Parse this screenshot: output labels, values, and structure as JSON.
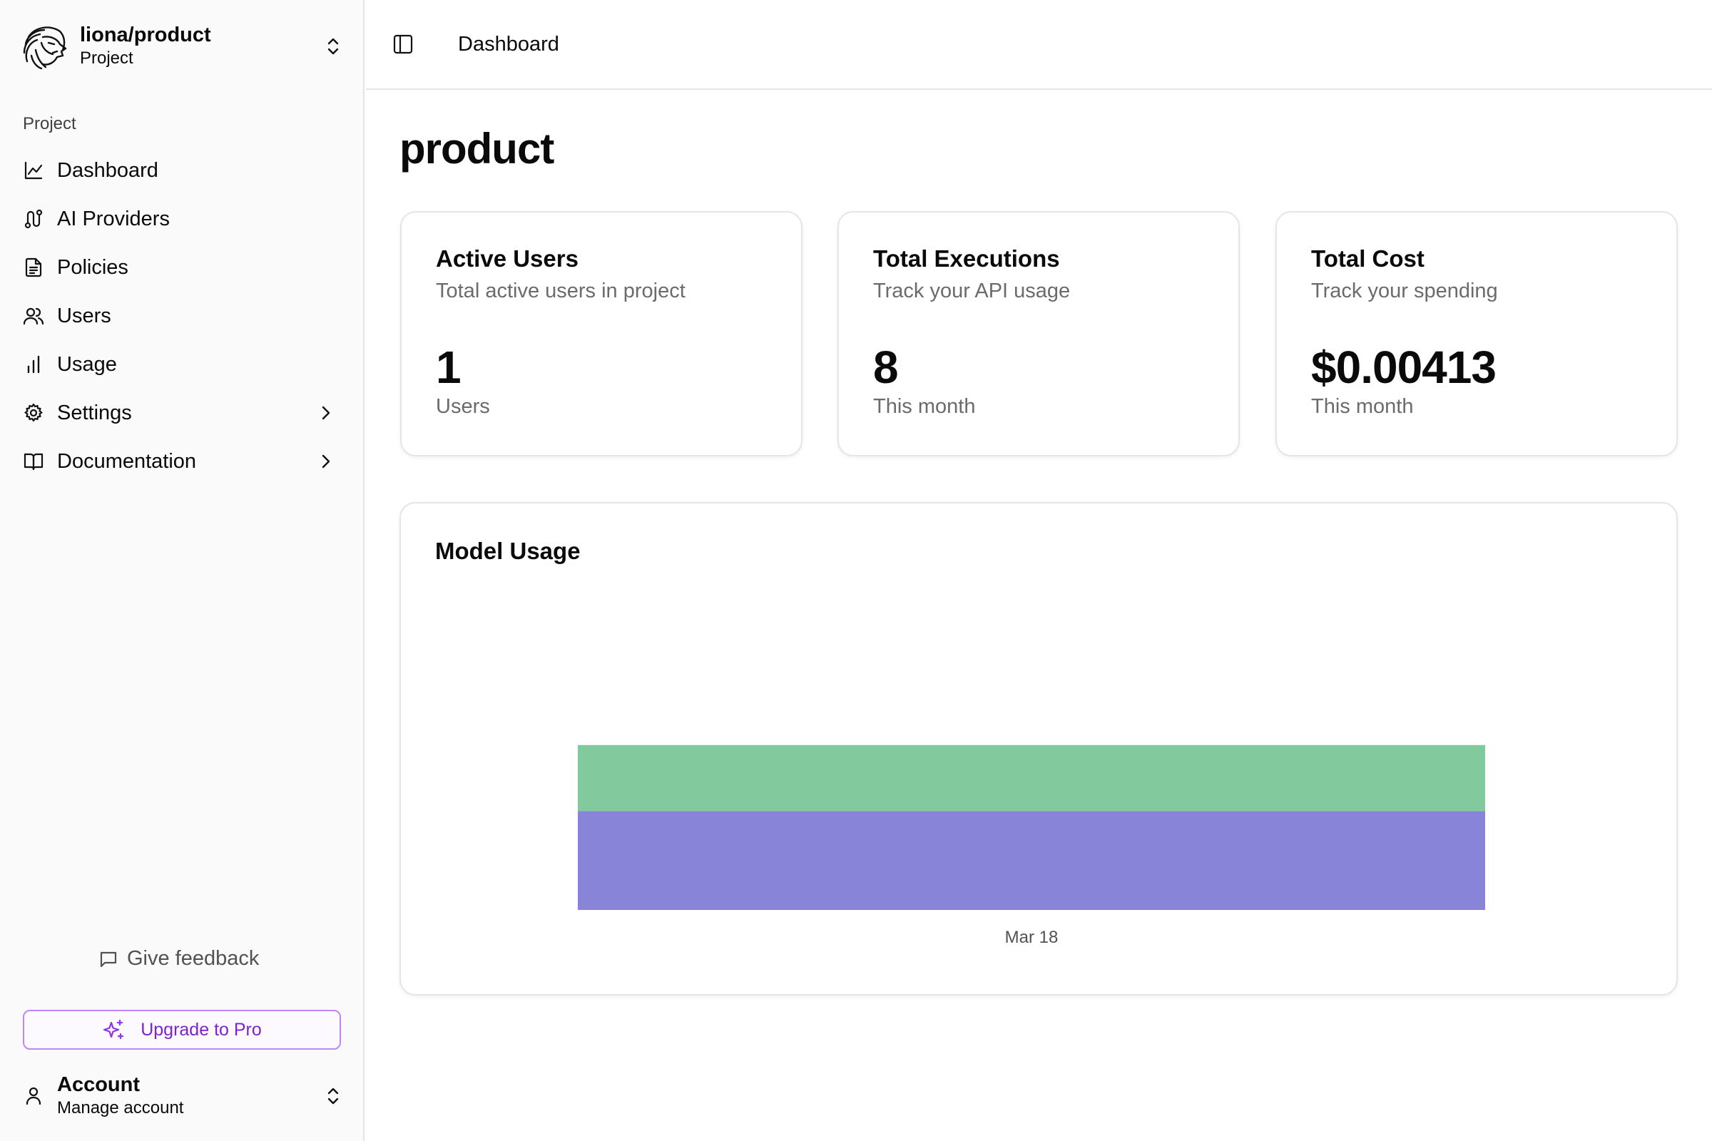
{
  "sidebar": {
    "project_name": "liona/product",
    "project_sub": "Project",
    "section_label": "Project",
    "items": [
      {
        "label": "Dashboard",
        "icon": "line-chart-icon"
      },
      {
        "label": "AI Providers",
        "icon": "route-icon"
      },
      {
        "label": "Policies",
        "icon": "document-icon"
      },
      {
        "label": "Users",
        "icon": "users-icon"
      },
      {
        "label": "Usage",
        "icon": "bar-chart-icon"
      },
      {
        "label": "Settings",
        "icon": "gear-icon",
        "expandable": true
      },
      {
        "label": "Documentation",
        "icon": "book-icon",
        "expandable": true
      }
    ],
    "feedback": "Give feedback",
    "upgrade": "Upgrade to Pro",
    "account_title": "Account",
    "account_sub": "Manage account"
  },
  "header": {
    "breadcrumb": "Dashboard"
  },
  "main": {
    "title": "product",
    "cards": [
      {
        "title": "Active Users",
        "desc": "Total active users in project",
        "value": "1",
        "unit": "Users"
      },
      {
        "title": "Total Executions",
        "desc": "Track your API usage",
        "value": "8",
        "unit": "This month"
      },
      {
        "title": "Total Cost",
        "desc": "Track your spending",
        "value": "$0.00413",
        "unit": "This month"
      }
    ]
  },
  "chart_data": {
    "type": "bar",
    "stacked": true,
    "title": "Model Usage",
    "categories": [
      "Mar 18"
    ],
    "series": [
      {
        "values": [
          3
        ],
        "color": "#8884d8"
      },
      {
        "values": [
          2
        ],
        "color": "#82ca9d"
      }
    ],
    "ylim": [
      0,
      8
    ]
  },
  "colors": {
    "accent_purple": "#7e22ce",
    "upgrade_border": "#c084fc"
  }
}
